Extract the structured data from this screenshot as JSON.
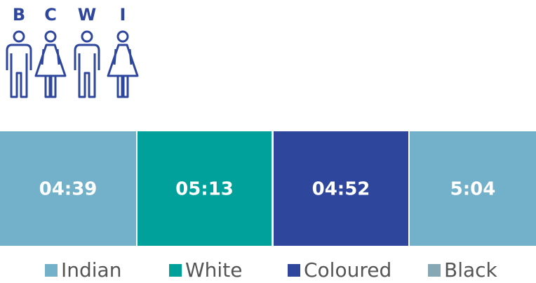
{
  "letters": [
    "B",
    "C",
    "W",
    "I"
  ],
  "boxes": [
    {
      "label": "04:39",
      "color": "#72b1c9"
    },
    {
      "label": "05:13",
      "color": "#00a19a"
    },
    {
      "label": "04:52",
      "color": "#2e479c"
    },
    {
      "label": "5:04",
      "color": "#72b1c9"
    }
  ],
  "legend": [
    {
      "name": "Indian",
      "color": "#72b1c9"
    },
    {
      "name": "White",
      "color": "#00a19a"
    },
    {
      "name": "Coloured",
      "color": "#2e479c"
    },
    {
      "name": "Black",
      "color": "#86a8b4"
    }
  ]
}
